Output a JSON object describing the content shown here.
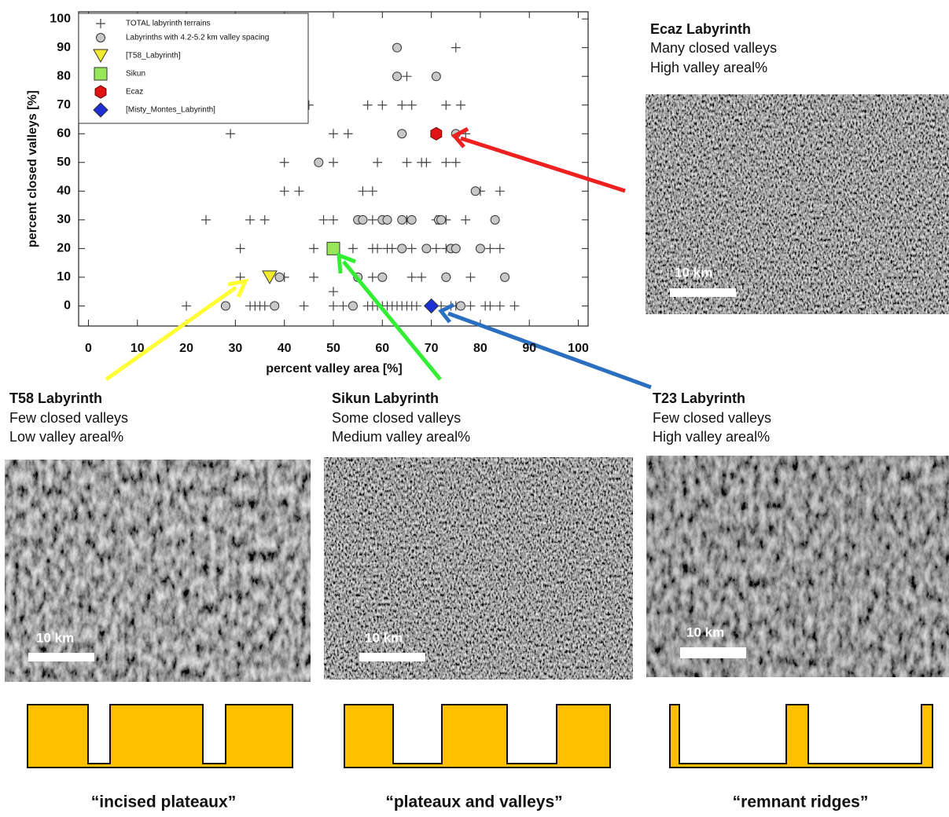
{
  "chart_data": {
    "type": "scatter",
    "xlabel": "percent valley area [%]",
    "ylabel": "percent closed valleys [%]",
    "xlim": [
      -2,
      102
    ],
    "ylim": [
      -7,
      102.5
    ],
    "xticks": [
      0,
      10,
      20,
      30,
      40,
      50,
      60,
      70,
      80,
      90,
      100
    ],
    "yticks": [
      0,
      10,
      20,
      30,
      40,
      50,
      60,
      70,
      80,
      90,
      100
    ],
    "series": [
      {
        "name": "TOTAL labyrinth terrains",
        "marker": "plus",
        "color": "#444444",
        "x": [
          75,
          65,
          45,
          57,
          60,
          64,
          66,
          73,
          76,
          29,
          50,
          53,
          77,
          40,
          50,
          59,
          65,
          68,
          69,
          73,
          75,
          40,
          43,
          56,
          58,
          80,
          84,
          24,
          33,
          36,
          48,
          50,
          58,
          61,
          65,
          71,
          73,
          77,
          31,
          46,
          54,
          58,
          59,
          61,
          62,
          66,
          71,
          73,
          75,
          82,
          84,
          31,
          40,
          46,
          58,
          66,
          68,
          73,
          78,
          50,
          20,
          33,
          34,
          35,
          36,
          44,
          50,
          52,
          57,
          58,
          59,
          60,
          61,
          62,
          63,
          64,
          65,
          66,
          67,
          72,
          74,
          75,
          78,
          81,
          82,
          84,
          87
        ],
        "values": [
          90,
          80,
          70,
          70,
          70,
          70,
          70,
          70,
          70,
          60,
          60,
          60,
          60,
          50,
          50,
          50,
          50,
          50,
          50,
          50,
          50,
          40,
          40,
          40,
          40,
          40,
          40,
          30,
          30,
          30,
          30,
          30,
          30,
          30,
          30,
          30,
          30,
          30,
          20,
          20,
          20,
          20,
          20,
          20,
          20,
          20,
          20,
          20,
          20,
          20,
          20,
          10,
          10,
          10,
          10,
          10,
          10,
          10,
          10,
          5,
          0,
          0,
          0,
          0,
          0,
          0,
          0,
          0,
          0,
          0,
          0,
          0,
          0,
          0,
          0,
          0,
          0,
          0,
          0,
          0,
          0,
          0,
          0,
          0,
          0,
          0,
          0
        ]
      },
      {
        "name": "Labyrinths with 4.2-5.2 km valley spacing",
        "marker": "circle",
        "color": "#c8c8c8",
        "x": [
          63,
          63,
          71,
          64,
          75,
          47,
          79,
          55,
          56,
          60,
          61,
          64,
          66,
          71.5,
          72,
          83,
          64,
          69,
          74,
          75,
          80,
          39,
          55,
          60,
          73,
          85,
          28,
          38,
          54,
          76
        ],
        "values": [
          90,
          80,
          80,
          60,
          60,
          50,
          40,
          30,
          30,
          30,
          30,
          30,
          30,
          30,
          30,
          30,
          20,
          20,
          20,
          20,
          20,
          10,
          10,
          10,
          10,
          10,
          0,
          0,
          0,
          0
        ]
      },
      {
        "name": "[T58_Labyrinth]",
        "marker": "triangle",
        "color": "#f2ea2e",
        "x": [
          37
        ],
        "values": [
          10
        ]
      },
      {
        "name": "Sikun",
        "marker": "square",
        "color": "#98e65a",
        "x": [
          50
        ],
        "values": [
          20
        ]
      },
      {
        "name": "Ecaz",
        "marker": "hexagon",
        "color": "#e01414",
        "x": [
          71
        ],
        "values": [
          60
        ]
      },
      {
        "name": "[Misty_Montes_Labyrinth]",
        "marker": "diamond",
        "color": "#1c30d2",
        "x": [
          70
        ],
        "values": [
          0
        ]
      }
    ]
  },
  "panels": [
    {
      "title": "Ecaz Labyrinth",
      "lines": [
        "Many closed valleys",
        "High valley areal%"
      ],
      "scale": "10 km"
    },
    {
      "title": "T58 Labyrinth",
      "lines": [
        "Few closed valleys",
        "Low valley areal%"
      ],
      "scale": "10 km"
    },
    {
      "title": "Sikun Labyrinth",
      "lines": [
        "Some closed valleys",
        "Medium valley areal%"
      ],
      "scale": "10 km"
    },
    {
      "title": "T23 Labyrinth",
      "lines": [
        "Few closed valleys",
        "High valley areal%"
      ],
      "scale": "10 km"
    }
  ],
  "profiles": [
    "“incised plateaux”",
    "“plateaux and valleys”",
    "“remnant ridges”"
  ]
}
